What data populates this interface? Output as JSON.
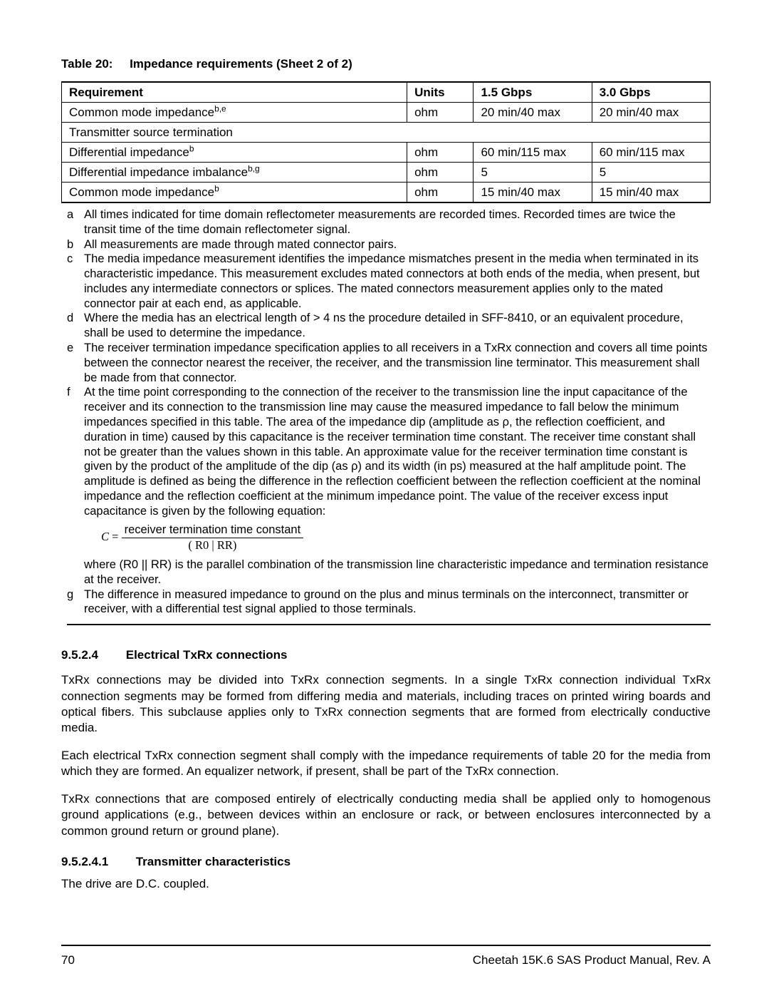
{
  "table": {
    "caption_prefix": "Table 20:",
    "caption_title": "Impedance requirements (Sheet 2 of 2)",
    "headers": {
      "requirement": "Requirement",
      "units": "Units",
      "g1": "1.5 Gbps",
      "g2": "3.0 Gbps"
    },
    "rows": [
      {
        "type": "data",
        "req": "Common mode impedance",
        "sup": "b,e",
        "units": "ohm",
        "g1": "20 min/40 max",
        "g2": "20 min/40 max"
      },
      {
        "type": "section",
        "req": "Transmitter source termination"
      },
      {
        "type": "data",
        "req": "Differential impedance",
        "sup": "b",
        "units": "ohm",
        "g1": "60 min/115 max",
        "g2": "60 min/115 max"
      },
      {
        "type": "data",
        "req": "Differential impedance imbalance",
        "sup": "b,g",
        "units": "ohm",
        "g1": "5",
        "g2": "5"
      },
      {
        "type": "data",
        "req": "Common mode impedance",
        "sup": "b",
        "units": "ohm",
        "g1": "15 min/40 max",
        "g2": "15 min/40 max"
      }
    ]
  },
  "notes": {
    "a": "All times indicated for time domain reflectometer measurements are recorded times. Recorded times are twice the transit time of the time domain reflectometer signal.",
    "b": "All measurements are made through mated connector pairs.",
    "c": "The media impedance measurement identifies the impedance mismatches present in the media when terminated in its characteristic impedance. This measurement excludes mated connectors at both ends of the media, when present, but includes any intermediate connectors or splices. The mated connectors measurement applies only to the mated connector pair at each end, as applicable.",
    "d": "Where the media has an electrical length of > 4 ns the procedure detailed in SFF-8410, or an equivalent procedure, shall be used to determine the impedance.",
    "e": "The receiver termination impedance specification applies to all receivers in a TxRx connection and covers all time points between the connector nearest the receiver, the receiver, and the transmission line terminator. This measurement shall be made from that connector.",
    "f": "At the time point corresponding to the connection of the receiver to the transmission line the input capacitance of the receiver and its connection to the transmission line may cause the measured impedance to fall below the minimum impedances specified in this table. The area of the impedance dip (amplitude as ρ, the reflection coefficient, and duration in time) caused by this capacitance is the receiver termination time constant. The receiver time constant shall not be greater than the values shown in this table. An approximate value for the receiver termination time constant is given by the product of the amplitude of the dip (as ρ) and its width (in ps) measured at the half amplitude point. The amplitude is defined as being the difference in the reflection coefficient between the reflection coefficient at the nominal impedance and the reflection coefficient at the minimum impedance point. The value of the receiver excess input capacitance is given by the following equation:",
    "f_eq": {
      "lhs": "C",
      "numer": "receiver termination time constant",
      "denom": "( R0 |  RR)"
    },
    "f_after": "where (R0 || RR) is the parallel combination of the transmission line characteristic impedance and termination resistance at the receiver.",
    "g": "The difference in measured impedance to ground on the plus and minus terminals on the interconnect, transmitter or receiver, with a differential test signal applied to those terminals."
  },
  "section_9524": {
    "num": "9.5.2.4",
    "title": "Electrical TxRx connections",
    "p1": "TxRx connections may be divided into TxRx connection segments. In a single TxRx connection individual TxRx connection segments may be formed from differing media and materials, including traces on printed wiring boards and optical fibers. This subclause applies only to TxRx connection segments that are formed from electrically conductive media.",
    "p2": "Each electrical TxRx connection segment shall comply with the impedance requirements of  table 20 for the media from which they are formed. An equalizer network, if present, shall be part of the TxRx connection.",
    "p3": "TxRx connections that are composed entirely of electrically conducting media shall be applied only to homogenous ground applications (e.g., between devices within an enclosure or rack, or between enclosures interconnected by a common ground return or ground plane)."
  },
  "section_95241": {
    "num": "9.5.2.4.1",
    "title": "Transmitter characteristics",
    "p1": "The drive are D.C. coupled."
  },
  "footer": {
    "page": "70",
    "doc": "Cheetah 15K.6 SAS Product Manual, Rev. A"
  }
}
